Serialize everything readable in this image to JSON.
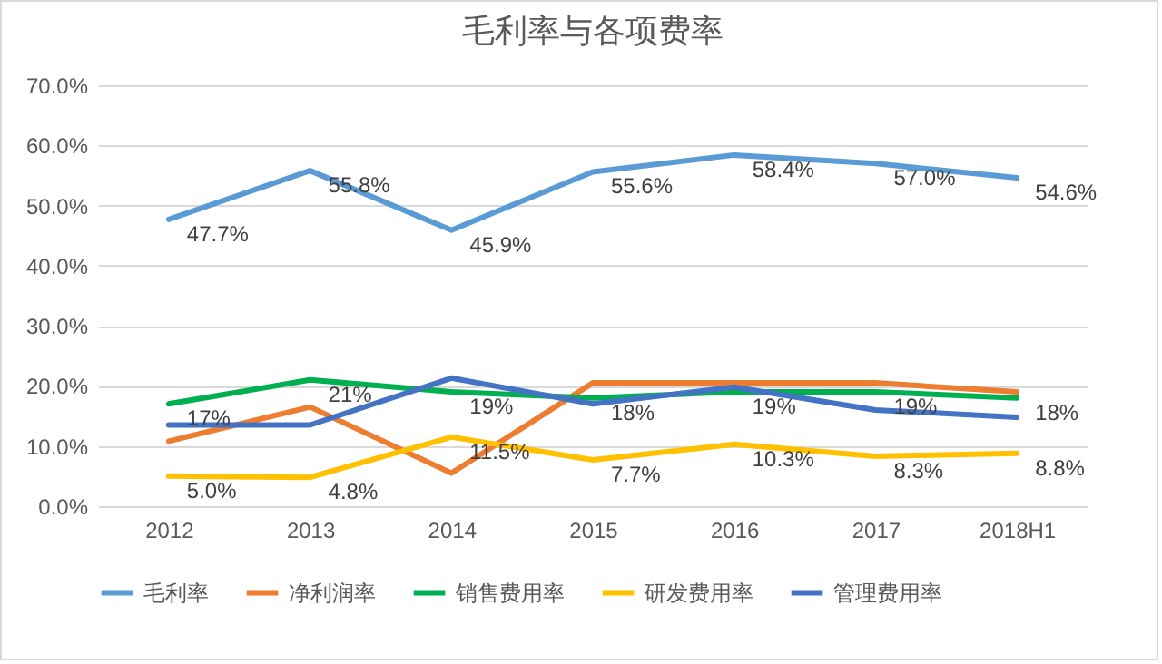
{
  "chart_data": {
    "type": "line",
    "title": "毛利率与各项费率",
    "categories": [
      "2012",
      "2013",
      "2014",
      "2015",
      "2016",
      "2017",
      "2018H1"
    ],
    "series": [
      {
        "name": "毛利率",
        "color": "#5b9bd5",
        "values": [
          47.7,
          55.8,
          45.9,
          55.6,
          58.4,
          57.0,
          54.6
        ],
        "value_labels": [
          "47.7%",
          "55.8%",
          "45.9%",
          "55.6%",
          "58.4%",
          "57.0%",
          "54.6%"
        ]
      },
      {
        "name": "净利润率",
        "color": "#ed7d31",
        "values": [
          10.8,
          16.5,
          5.5,
          20.5,
          20.5,
          20.5,
          19.0
        ]
      },
      {
        "name": "销售费用率",
        "color": "#00b050",
        "values": [
          17,
          21,
          19,
          18,
          19,
          19,
          18
        ],
        "value_labels": [
          "17%",
          "21%",
          "19%",
          "18%",
          "19%",
          "19%",
          "18%"
        ]
      },
      {
        "name": "研发费用率",
        "color": "#ffc000",
        "values": [
          5.0,
          4.8,
          11.5,
          7.7,
          10.3,
          8.3,
          8.8
        ],
        "value_labels": [
          "5.0%",
          "4.8%",
          "11.5%",
          "7.7%",
          "10.3%",
          "8.3%",
          "8.8%"
        ]
      },
      {
        "name": "管理费用率",
        "color": "#4472c4",
        "values": [
          13.5,
          13.5,
          21.3,
          17.0,
          19.8,
          16.0,
          14.8
        ]
      }
    ],
    "ylim": [
      0,
      70
    ],
    "yticks": [
      {
        "value": 0,
        "label": "0.0%"
      },
      {
        "value": 10,
        "label": "10.0%"
      },
      {
        "value": 20,
        "label": "20.0%"
      },
      {
        "value": 30,
        "label": "30.0%"
      },
      {
        "value": 40,
        "label": "40.0%"
      },
      {
        "value": 50,
        "label": "50.0%"
      },
      {
        "value": 60,
        "label": "60.0%"
      },
      {
        "value": 70,
        "label": "70.0%"
      }
    ],
    "grid": "y",
    "legend": "bottom",
    "marker": "none",
    "line_style": "solid"
  }
}
